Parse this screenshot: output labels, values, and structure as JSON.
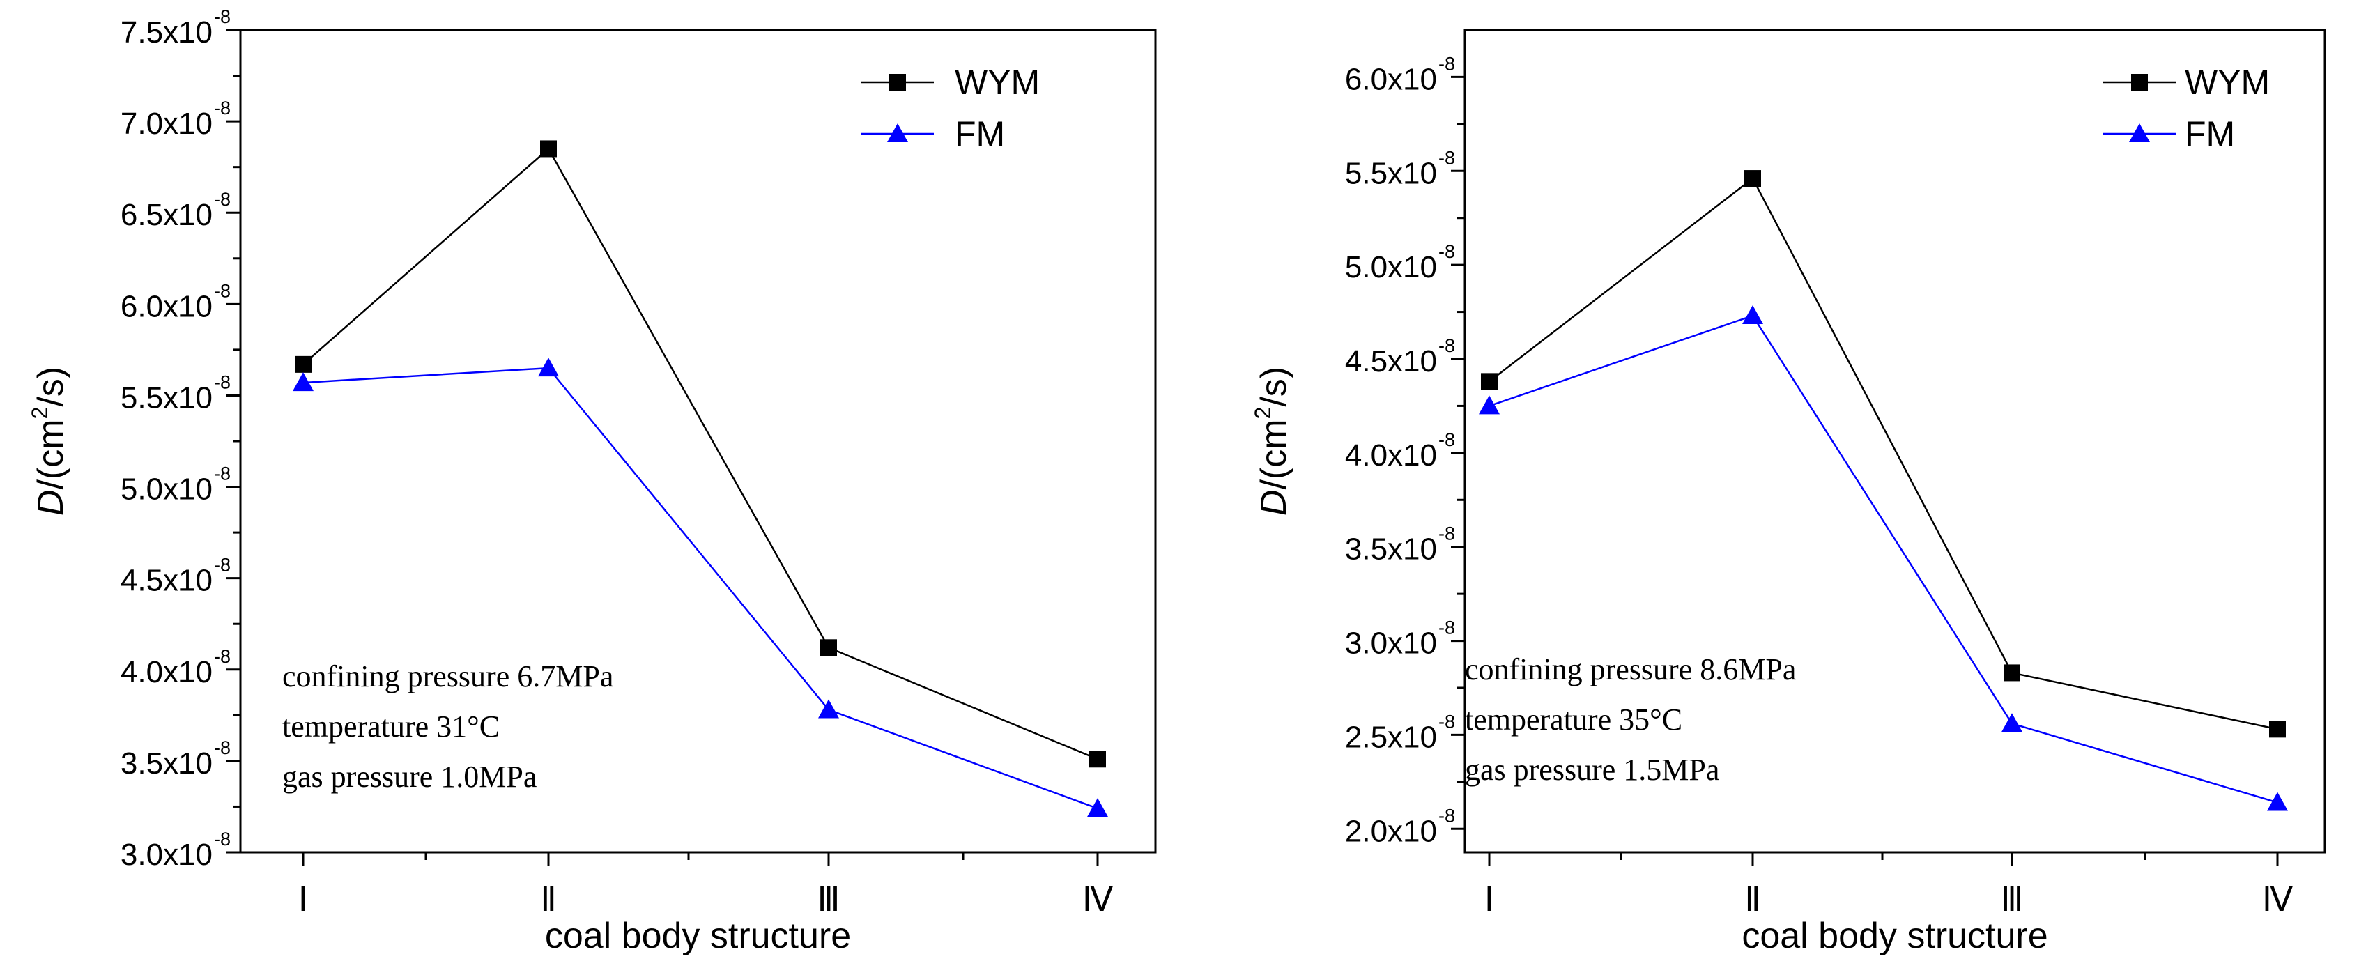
{
  "chart_data": [
    {
      "type": "line",
      "xlabel": "coal body structure",
      "ylabel_main": "D",
      "ylabel_rest": "/(cm",
      "ylabel_sup": "2",
      "ylabel_end": "/s)",
      "categories": [
        "Ⅰ",
        "Ⅱ",
        "Ⅲ",
        "Ⅳ"
      ],
      "ylim": [
        3.0,
        7.5
      ],
      "yticks": [
        3.0,
        3.5,
        4.0,
        4.5,
        5.0,
        5.5,
        6.0,
        6.5,
        7.0,
        7.5
      ],
      "ytick_labels": [
        "3.0x10",
        "3.5x10",
        "4.0x10",
        "4.5x10",
        "5.0x10",
        "5.5x10",
        "6.0x10",
        "6.5x10",
        "7.0x10",
        "7.5x10"
      ],
      "ytick_exp": "-8",
      "series": [
        {
          "name": "WYM",
          "marker": "square",
          "color": "#000000",
          "values": [
            5.67,
            6.85,
            4.12,
            3.51
          ]
        },
        {
          "name": "FM",
          "marker": "triangle",
          "color": "#0000ff",
          "values": [
            5.57,
            5.65,
            3.78,
            3.24
          ]
        }
      ],
      "annotations": [
        "confining pressure 6.7MPa",
        "temperature 31°C",
        "gas pressure 1.0MPa"
      ]
    },
    {
      "type": "line",
      "xlabel": "coal body structure",
      "ylabel_main": "D",
      "ylabel_rest": "/(cm",
      "ylabel_sup": "2",
      "ylabel_end": "/s)",
      "categories": [
        "Ⅰ",
        "Ⅱ",
        "Ⅲ",
        "Ⅳ"
      ],
      "ylim": [
        1.875,
        6.25
      ],
      "yticks": [
        2.0,
        2.5,
        3.0,
        3.5,
        4.0,
        4.5,
        5.0,
        5.5,
        6.0
      ],
      "ytick_labels": [
        "2.0x10",
        "2.5x10",
        "3.0x10",
        "3.5x10",
        "4.0x10",
        "4.5x10",
        "5.0x10",
        "5.5x10",
        "6.0x10"
      ],
      "ytick_exp": "-8",
      "series": [
        {
          "name": "WYM",
          "marker": "square",
          "color": "#000000",
          "values": [
            4.38,
            5.46,
            2.83,
            2.53
          ]
        },
        {
          "name": "FM",
          "marker": "triangle",
          "color": "#0000ff",
          "values": [
            4.25,
            4.73,
            2.56,
            2.14
          ]
        }
      ],
      "annotations": [
        "confining pressure 8.6MPa",
        "temperature 35°C",
        "gas pressure 1.5MPa"
      ]
    }
  ]
}
